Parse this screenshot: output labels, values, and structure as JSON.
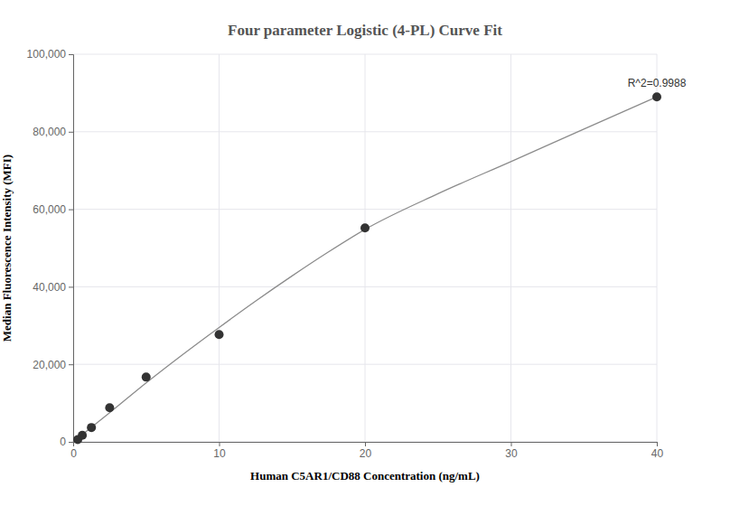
{
  "chart_data": {
    "type": "scatter",
    "title": "Four parameter Logistic (4-PL) Curve Fit",
    "x_label": "Human C5AR1/CD88 Concentration (ng/mL)",
    "y_label": "Median Fluorescence Intensity (MFI)",
    "series": [
      {
        "type": "scatter",
        "marker": "circle",
        "color": "#333333",
        "x": [
          0.3125,
          0.625,
          1.25,
          2.5,
          5,
          10,
          20,
          40
        ],
        "values": [
          600,
          1700,
          3700,
          8800,
          16700,
          27700,
          55200,
          89000
        ]
      },
      {
        "type": "line",
        "line_style": "solid",
        "color": "#8c8c8c",
        "x": [
          0,
          2.5,
          5,
          7.5,
          10,
          12.5,
          15,
          17.5,
          20,
          25,
          30,
          35,
          40
        ],
        "values": [
          0,
          7500,
          15200,
          22500,
          29500,
          36300,
          42800,
          49000,
          54800,
          64000,
          72300,
          80700,
          89000
        ]
      }
    ],
    "annotations": [
      {
        "text": "R^2=0.9988",
        "x": 40,
        "y": 89000
      }
    ],
    "xlim": [
      0,
      40
    ],
    "xticks": [
      0,
      10,
      20,
      30,
      40
    ],
    "ylim": [
      0,
      100000
    ],
    "yticks": [
      0,
      {
        "value": 20000,
        "label": "20,000"
      },
      {
        "value": 40000,
        "label": "40,000"
      },
      {
        "value": 60000,
        "label": "60,000"
      },
      {
        "value": 80000,
        "label": "80,000"
      },
      {
        "value": 100000,
        "label": "100,000"
      }
    ],
    "grid": true
  }
}
